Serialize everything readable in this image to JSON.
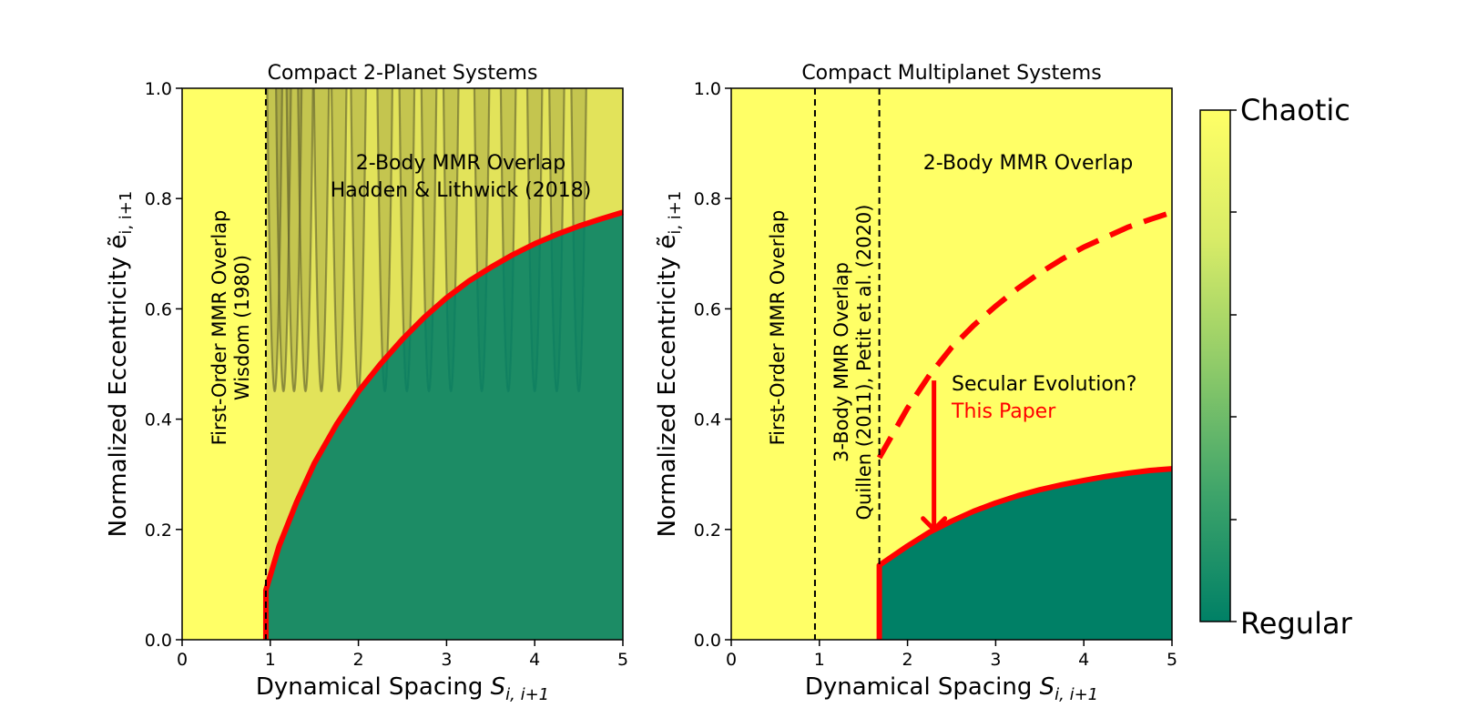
{
  "chart_data": [
    {
      "type": "area",
      "title": "Compact 2-Planet Systems",
      "xlabel": "Dynamical Spacing",
      "xlabel_sub": "i, i+1",
      "ylabel": "Normalized Eccentricity",
      "ylabel_sub": "i, i+1",
      "xlim": [
        0,
        5
      ],
      "ylim": [
        0,
        1
      ],
      "xticks": [
        0,
        1,
        2,
        3,
        4,
        5
      ],
      "xtick_labels": [
        "0",
        "1",
        "2",
        "3",
        "4",
        "5"
      ],
      "yticks": [
        0,
        0.2,
        0.4,
        0.6,
        0.8,
        1.0
      ],
      "ytick_labels": [
        "0.0",
        "0.2",
        "0.4",
        "0.6",
        "0.8",
        "1.0"
      ],
      "critical_spacing": 0.95,
      "curve_x": [
        0.95,
        1.1,
        1.3,
        1.5,
        1.75,
        2.0,
        2.25,
        2.5,
        2.75,
        3.0,
        3.25,
        3.5,
        3.75,
        4.0,
        4.25,
        4.5,
        4.75,
        5.0
      ],
      "curve_y": [
        0.09,
        0.17,
        0.25,
        0.32,
        0.39,
        0.45,
        0.5,
        0.545,
        0.585,
        0.62,
        0.65,
        0.675,
        0.698,
        0.718,
        0.735,
        0.75,
        0.763,
        0.775
      ],
      "mmr_centers": [
        1.05,
        1.15,
        1.27,
        1.4,
        1.58,
        1.78,
        2.0,
        2.3,
        2.55,
        2.8,
        3.05,
        3.4,
        3.7,
        4.0,
        4.25,
        4.5
      ],
      "mmr_width": 0.17,
      "vline_x": 0.95,
      "vline_label_1": "First-Order MMR Overlap",
      "vline_label_2": "Wisdom (1980)",
      "region_label_1": "2-Body MMR Overlap",
      "region_label_2": "Hadden & Lithwick (2018)"
    },
    {
      "type": "area",
      "title": "Compact Multiplanet Systems",
      "xlabel": "Dynamical Spacing",
      "xlabel_sub": "i, i+1",
      "ylabel": "Normalized Eccentricity",
      "ylabel_sub": "i, i+1",
      "xlim": [
        0,
        5
      ],
      "ylim": [
        0,
        1
      ],
      "xticks": [
        0,
        1,
        2,
        3,
        4,
        5
      ],
      "xtick_labels": [
        "0",
        "1",
        "2",
        "3",
        "4",
        "5"
      ],
      "yticks": [
        0,
        0.2,
        0.4,
        0.6,
        0.8,
        1.0
      ],
      "ytick_labels": [
        "0.0",
        "0.2",
        "0.4",
        "0.6",
        "0.8",
        "1.0"
      ],
      "vline1_x": 0.95,
      "vline2_x": 1.68,
      "vline1_label": "First-Order MMR Overlap",
      "vline2_label_1": "3-Body MMR Overlap",
      "vline2_label_2": "Quillen (2011), Petit et al. (2020)",
      "region_label": "2-Body MMR Overlap",
      "dashed_x": [
        1.68,
        2.0,
        2.25,
        2.5,
        2.75,
        3.0,
        3.25,
        3.5,
        3.75,
        4.0,
        4.25,
        4.5,
        4.75,
        5.0
      ],
      "dashed_y": [
        0.33,
        0.42,
        0.48,
        0.53,
        0.57,
        0.605,
        0.637,
        0.665,
        0.69,
        0.712,
        0.73,
        0.748,
        0.762,
        0.775
      ],
      "solid_x": [
        1.68,
        2.0,
        2.25,
        2.5,
        2.75,
        3.0,
        3.25,
        3.5,
        3.75,
        4.0,
        4.25,
        4.5,
        4.75,
        5.0
      ],
      "solid_y": [
        0.135,
        0.17,
        0.195,
        0.215,
        0.233,
        0.248,
        0.261,
        0.272,
        0.281,
        0.289,
        0.296,
        0.302,
        0.307,
        0.31
      ],
      "arrow_x": 2.3,
      "arrow_y_from": 0.47,
      "arrow_y_to": 0.2,
      "annotation_1": "Secular Evolution?",
      "annotation_2": "This Paper"
    }
  ],
  "colorbar": {
    "top_label": "Chaotic",
    "bottom_label": "Regular",
    "top_color": "#ffff66",
    "bottom_color": "#008066"
  },
  "colors": {
    "chaotic": "#ffff66",
    "regular": "#008066",
    "overlap_shade": "#e2e35a",
    "boundary": "#ff0000",
    "resonance_line": "#5a5a2a"
  },
  "symbol_S": "S",
  "symbol_e": "ẽ"
}
